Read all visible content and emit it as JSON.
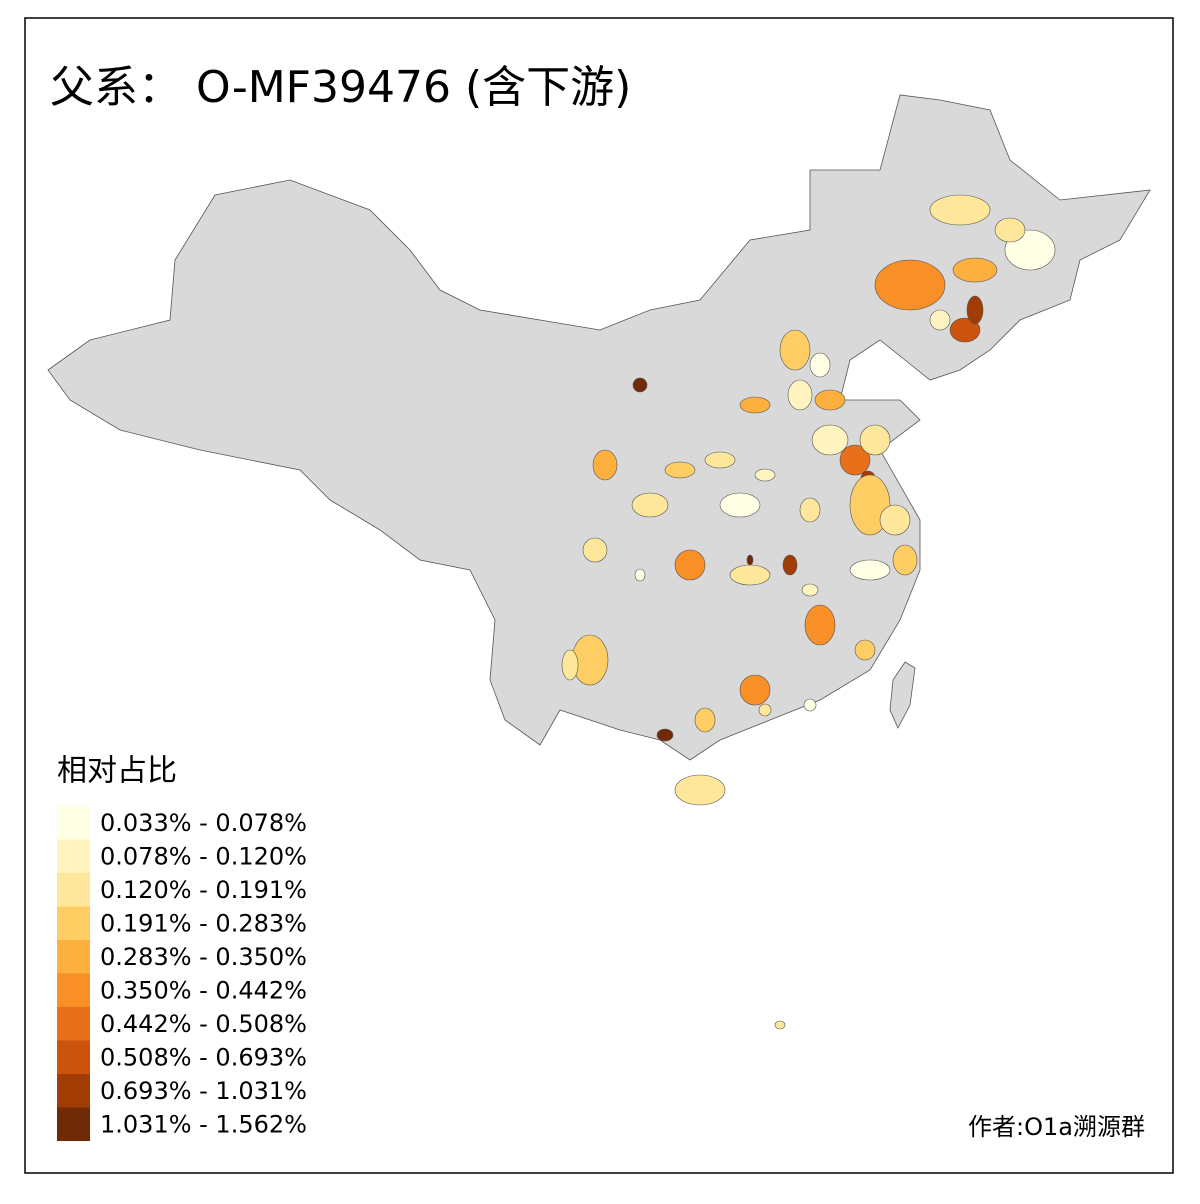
{
  "title": "父系： O-MF39476 (含下游)",
  "legend": {
    "title": "相对占比",
    "classes": [
      {
        "label": "0.033% - 0.078%",
        "color": "#ffffe5"
      },
      {
        "label": "0.078% - 0.120%",
        "color": "#fff4c0"
      },
      {
        "label": "0.120% - 0.191%",
        "color": "#fee79b"
      },
      {
        "label": "0.191% - 0.283%",
        "color": "#fece65"
      },
      {
        "label": "0.283% - 0.350%",
        "color": "#feb03f"
      },
      {
        "label": "0.350% - 0.442%",
        "color": "#f88f27"
      },
      {
        "label": "0.442% - 0.508%",
        "color": "#e8701a"
      },
      {
        "label": "0.508% - 0.693%",
        "color": "#cb530c"
      },
      {
        "label": "0.693% - 1.031%",
        "color": "#a13c05"
      },
      {
        "label": "1.031% - 1.562%",
        "color": "#702a06"
      }
    ]
  },
  "credit": "作者:O1a溯源群"
}
